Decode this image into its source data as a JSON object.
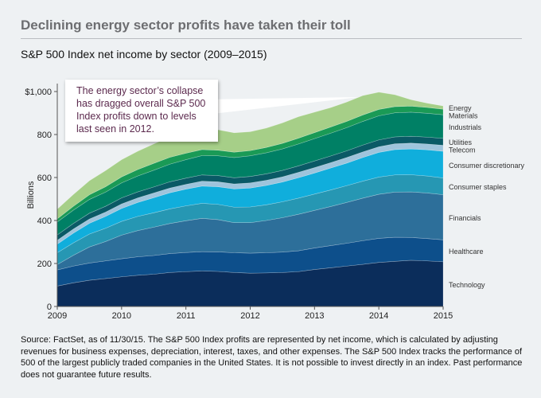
{
  "header": {
    "title": "Declining energy sector profits have taken their toll",
    "subtitle": "S&P 500 Index net income by sector (2009–2015)"
  },
  "callout": {
    "text": "The energy sector’s collapse has dragged overall S&P 500 Index profits down to levels last seen in 2012."
  },
  "source_note": "Source: FactSet, as of 11/30/15. The S&P 500 Index profits are represented by net income, which is calculated by adjusting revenues for business expenses, depreciation, interest, taxes, and other expenses. The S&P 500 Index tracks the performance of 500 of the largest publicly traded companies in the United States. It is not possible to invest directly in an index. Past performance does not guarantee future results.",
  "chart_data": {
    "type": "area",
    "stacked": true,
    "title": "S&P 500 Index net income by sector (2009–2015)",
    "xlabel": "",
    "ylabel": "Billions",
    "ylim": [
      0,
      1000
    ],
    "xlim": [
      2009,
      2015
    ],
    "x_ticks": [
      "2009",
      "2010",
      "2011",
      "2012",
      "2013",
      "2014",
      "2015"
    ],
    "y_ticks": [
      "0",
      "200",
      "400",
      "600",
      "800",
      "$1,000"
    ],
    "legend": "right, inline labels",
    "x": [
      2009.0,
      2009.25,
      2009.5,
      2009.75,
      2010.0,
      2010.25,
      2010.5,
      2010.75,
      2011.0,
      2011.25,
      2011.5,
      2011.75,
      2012.0,
      2012.25,
      2012.5,
      2012.75,
      2013.0,
      2013.25,
      2013.5,
      2013.75,
      2014.0,
      2014.25,
      2014.5,
      2014.75,
      2015.0
    ],
    "series": [
      {
        "name": "Technology",
        "color": "#0b2d5b",
        "values": [
          95,
          110,
          122,
          130,
          138,
          145,
          150,
          158,
          162,
          165,
          163,
          158,
          155,
          156,
          158,
          162,
          172,
          180,
          188,
          196,
          205,
          210,
          215,
          212,
          208
        ]
      },
      {
        "name": "Healthcare",
        "color": "#0d4f8b",
        "values": [
          75,
          78,
          80,
          82,
          84,
          86,
          87,
          88,
          89,
          90,
          91,
          92,
          93,
          94,
          95,
          97,
          100,
          103,
          106,
          110,
          112,
          112,
          106,
          104,
          102
        ]
      },
      {
        "name": "Financials",
        "color": "#2d6f9a",
        "values": [
          25,
          50,
          75,
          90,
          110,
          122,
          132,
          140,
          148,
          155,
          150,
          140,
          142,
          150,
          160,
          170,
          175,
          182,
          190,
          198,
          205,
          210,
          212,
          212,
          210
        ]
      },
      {
        "name": "Consumer staples",
        "color": "#2697b3",
        "values": [
          55,
          58,
          60,
          62,
          64,
          66,
          67,
          68,
          69,
          70,
          71,
          72,
          73,
          73,
          74,
          75,
          76,
          77,
          78,
          79,
          80,
          80,
          80,
          79,
          78
        ]
      },
      {
        "name": "Consumer discretionary",
        "color": "#10aedc",
        "values": [
          40,
          45,
          50,
          55,
          60,
          65,
          70,
          75,
          78,
          80,
          82,
          85,
          88,
          90,
          92,
          95,
          98,
          102,
          105,
          110,
          115,
          118,
          120,
          122,
          124
        ]
      },
      {
        "name": "Telecom",
        "color": "#9ec4dc",
        "values": [
          18,
          19,
          20,
          20,
          21,
          21,
          22,
          22,
          22,
          23,
          23,
          23,
          24,
          24,
          24,
          25,
          25,
          25,
          26,
          26,
          26,
          27,
          27,
          27,
          28
        ]
      },
      {
        "name": "Utilities",
        "color": "#0a5a66",
        "values": [
          25,
          26,
          27,
          27,
          28,
          28,
          28,
          29,
          29,
          29,
          29,
          29,
          30,
          30,
          30,
          30,
          31,
          31,
          31,
          32,
          32,
          32,
          32,
          32,
          32
        ]
      },
      {
        "name": "Industrials",
        "color": "#008065",
        "values": [
          60,
          62,
          64,
          66,
          70,
          74,
          78,
          82,
          86,
          90,
          92,
          94,
          96,
          98,
          100,
          102,
          104,
          106,
          108,
          110,
          112,
          112,
          112,
          111,
          110
        ]
      },
      {
        "name": "Materials",
        "color": "#1a9a56",
        "values": [
          15,
          18,
          22,
          25,
          28,
          30,
          32,
          32,
          30,
          28,
          26,
          25,
          24,
          25,
          26,
          27,
          28,
          29,
          29,
          30,
          30,
          29,
          28,
          27,
          26
        ]
      },
      {
        "name": "Energy",
        "color": "#a6cf88",
        "values": [
          45,
          55,
          65,
          75,
          80,
          85,
          90,
          95,
          100,
          100,
          95,
          90,
          88,
          90,
          95,
          100,
          95,
          90,
          90,
          90,
          80,
          55,
          30,
          20,
          15
        ]
      }
    ]
  }
}
